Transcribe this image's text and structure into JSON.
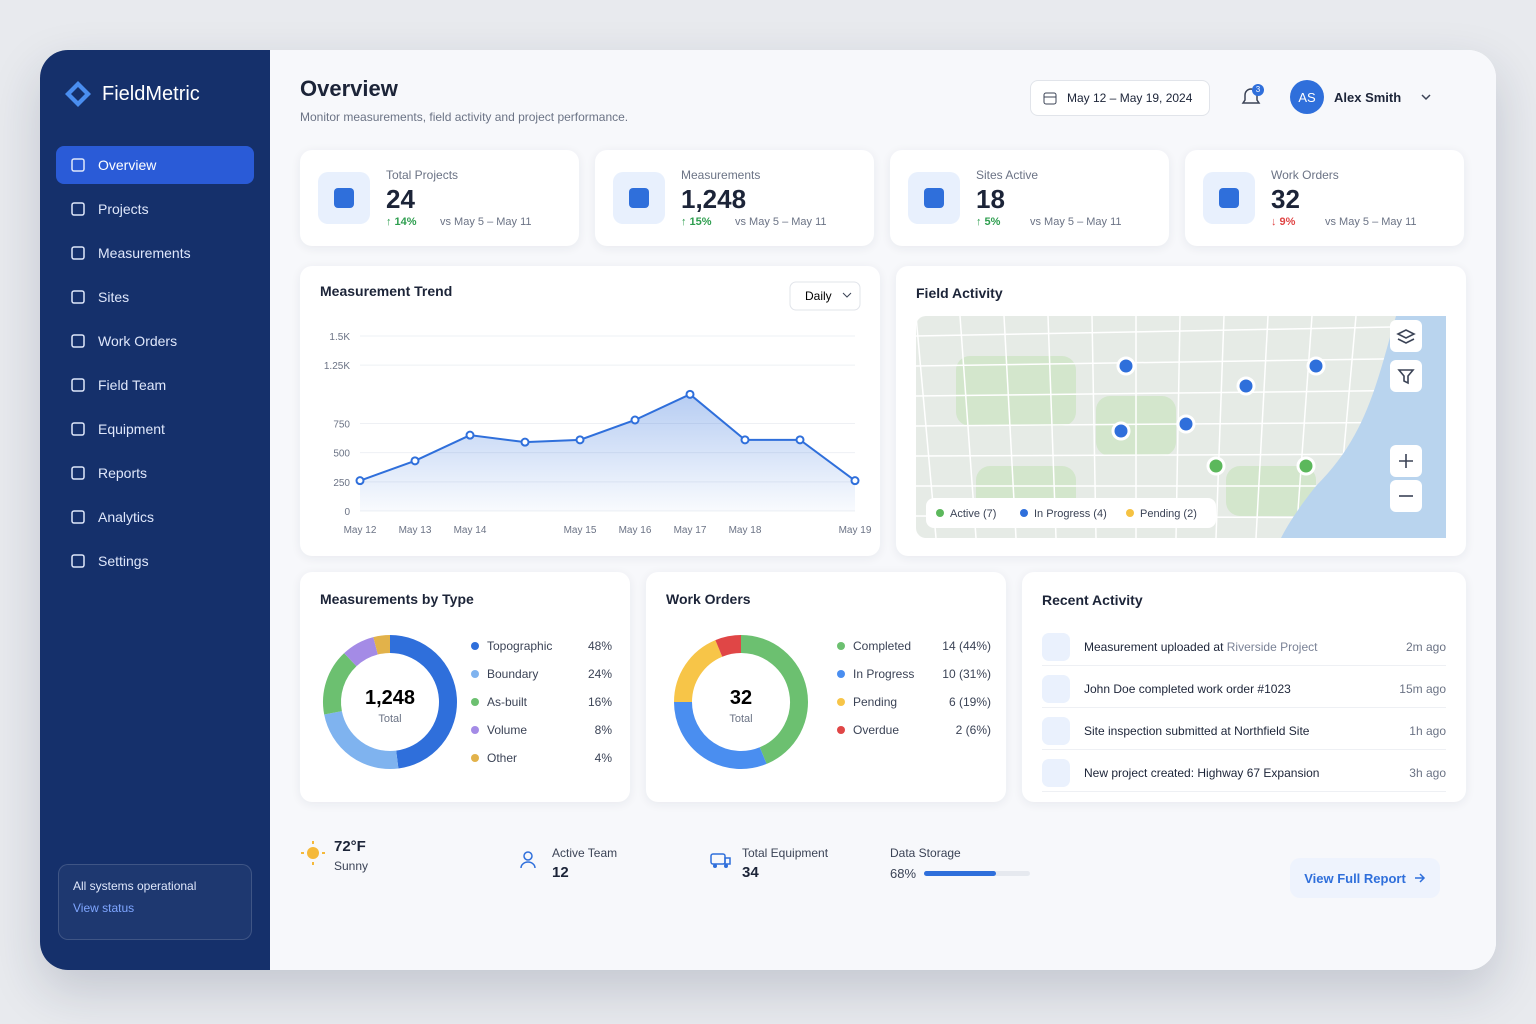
{
  "brand": "FieldMetric",
  "nav": [
    "Overview",
    "Projects",
    "Measurements",
    "Sites",
    "Work Orders",
    "Field Team",
    "Equipment",
    "Reports",
    "Analytics",
    "Settings"
  ],
  "status": {
    "text": "All systems operational",
    "link": "View status"
  },
  "header": {
    "title": "Overview",
    "subtitle": "Monitor measurements, field activity and project performance.",
    "date_range": "May 12 – May 19, 2024",
    "notifications": "3",
    "avatar": "AS",
    "user": "Alex Smith"
  },
  "kpis": [
    {
      "label": "Total Projects",
      "value": "24",
      "change": "↑ 14%",
      "change_color": "#2e9e4f",
      "period": "vs May 5 – May 11"
    },
    {
      "label": "Measurements",
      "value": "1,248",
      "change": "↑ 15%",
      "change_color": "#2e9e4f",
      "period": "vs May 5 – May 11"
    },
    {
      "label": "Sites Active",
      "value": "18",
      "change": "↑ 5%",
      "change_color": "#2e9e4f",
      "period": "vs May 5 – May 11"
    },
    {
      "label": "Work Orders",
      "value": "32",
      "change": "↓ 9%",
      "change_color": "#e04646",
      "period": "vs May 5 – May 11"
    }
  ],
  "trend_chart": {
    "type": "line",
    "title": "Measurement Trend",
    "control": "Daily",
    "categories": [
      "May 12",
      "May 13",
      "May 14",
      null,
      "May 15",
      "May 16",
      "May 17",
      "May 18",
      null,
      "May 19"
    ],
    "values": [
      260,
      430,
      650,
      590,
      610,
      780,
      1000,
      610,
      610,
      260
    ],
    "color": "#2f6fdb",
    "ylim": [
      0,
      1500
    ],
    "yticks": [
      0,
      250,
      500,
      750,
      {
        "value": 1250,
        "label": "1.25K"
      },
      {
        "value": 1500,
        "label": "1.5K"
      }
    ]
  },
  "field_activity": {
    "title": "Field Activity",
    "legend": [
      {
        "label": "Active (7)",
        "color": "#5cb85c"
      },
      {
        "label": "In Progress (4)",
        "color": "#2f6fdb"
      },
      {
        "label": "Pending (2)",
        "color": "#f5c242"
      }
    ]
  },
  "type_chart": {
    "type": "donut",
    "title": "Measurements by Type",
    "center_value": "1,248",
    "center_label": "Total",
    "categories": [
      "Topographic",
      "Boundary",
      "As-built",
      "Volume",
      "Other"
    ],
    "values": [
      48,
      24,
      16,
      8,
      4
    ],
    "value_labels": [
      "48%",
      "24%",
      "16%",
      "8%",
      "4%"
    ],
    "colors": [
      "#2f6fdb",
      "#7fb3ef",
      "#6cc070",
      "#a48be6",
      "#e2b24a"
    ]
  },
  "work_orders_chart": {
    "type": "donut",
    "title": "Work Orders",
    "center_value": "32",
    "center_label": "Total",
    "categories": [
      "Completed",
      "In Progress",
      "Pending",
      "Overdue"
    ],
    "values": [
      14,
      10,
      6,
      2
    ],
    "value_labels": [
      "14 (44%)",
      "10 (31%)",
      "6 (19%)",
      "2 (6%)"
    ],
    "colors": [
      "#6cc070",
      "#4a8ef0",
      "#f7c548",
      "#e04646"
    ]
  },
  "recent_activity": {
    "title": "Recent Activity",
    "items": [
      {
        "text": "Measurement uploaded at ",
        "highlight": "Riverside Project",
        "time": "2m ago"
      },
      {
        "text": "John Doe completed work order #1023",
        "time": "15m ago"
      },
      {
        "text": "Site inspection submitted at Northfield Site",
        "time": "1h ago"
      },
      {
        "text": "New project created: Highway 67 Expansion",
        "time": "3h ago"
      }
    ]
  },
  "footer": {
    "weather": {
      "temp": "72°F",
      "condition": "Sunny"
    },
    "active_team": {
      "label": "Active Team",
      "value": "12"
    },
    "equipment": {
      "label": "Total Equipment",
      "value": "34"
    },
    "storage": {
      "label": "Data Storage",
      "value": 68,
      "value_label": "68%"
    },
    "button": "View Full Report"
  }
}
